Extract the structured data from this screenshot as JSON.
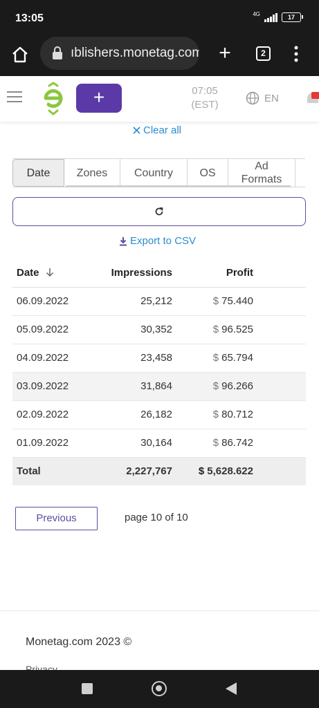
{
  "status_bar": {
    "time": "13:05",
    "network": "4G",
    "battery": "17"
  },
  "browser": {
    "url": "ıblishers.monetag.com",
    "tab_count": "2",
    "new_tab_label": "+"
  },
  "header": {
    "create_label": "+",
    "clock_time": "07:05",
    "clock_zone": "(EST)",
    "language": "EN",
    "brand_color": "#5b3aa8",
    "logo_color": "#8cc63f"
  },
  "filters": {
    "clear_all_label": "Clear all"
  },
  "tabs": [
    {
      "label": "Date",
      "active": true
    },
    {
      "label": "Zones",
      "active": false
    },
    {
      "label": "Country",
      "active": false
    },
    {
      "label": "OS",
      "active": false
    },
    {
      "label": "Ad Formats",
      "active": false
    }
  ],
  "export_label": "Export to CSV",
  "table": {
    "columns": [
      "Date",
      "Impressions",
      "Profit"
    ],
    "rows": [
      {
        "date": "06.09.2022",
        "impressions": "25,212",
        "profit": "75.440"
      },
      {
        "date": "05.09.2022",
        "impressions": "30,352",
        "profit": "96.525"
      },
      {
        "date": "04.09.2022",
        "impressions": "23,458",
        "profit": "65.794"
      },
      {
        "date": "03.09.2022",
        "impressions": "31,864",
        "profit": "96.266"
      },
      {
        "date": "02.09.2022",
        "impressions": "26,182",
        "profit": "80.712"
      },
      {
        "date": "01.09.2022",
        "impressions": "30,164",
        "profit": "86.742"
      }
    ],
    "total": {
      "label": "Total",
      "impressions": "2,227,767",
      "profit": "5,628.622"
    },
    "currency": "$"
  },
  "pagination": {
    "previous_label": "Previous",
    "page_info": "page 10 of 10"
  },
  "footer": {
    "copyright": "Monetag.com 2023 ©",
    "privacy": "Privacy"
  }
}
